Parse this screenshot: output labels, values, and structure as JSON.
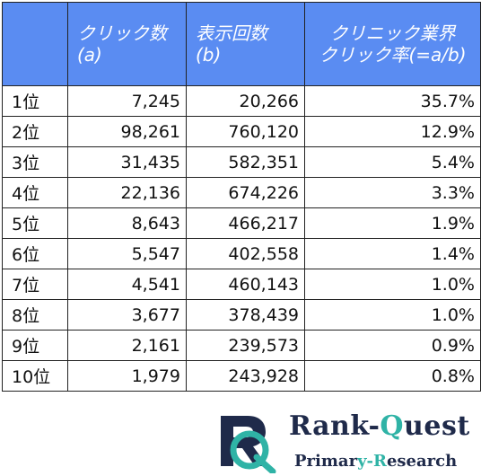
{
  "table": {
    "headers": {
      "clicks": [
        "クリック数",
        "(a)"
      ],
      "impressions": [
        "表示回数",
        "(b)"
      ],
      "ctr": [
        "クリニック業界",
        "クリック率(=a/b)"
      ]
    },
    "rows": [
      {
        "rank": "1位",
        "clicks": "7,245",
        "impressions": "20,266",
        "ctr": "35.7%"
      },
      {
        "rank": "2位",
        "clicks": "98,261",
        "impressions": "760,120",
        "ctr": "12.9%"
      },
      {
        "rank": "3位",
        "clicks": "31,435",
        "impressions": "582,351",
        "ctr": "5.4%"
      },
      {
        "rank": "4位",
        "clicks": "22,136",
        "impressions": "674,226",
        "ctr": "3.3%"
      },
      {
        "rank": "5位",
        "clicks": "8,643",
        "impressions": "466,217",
        "ctr": "1.9%"
      },
      {
        "rank": "6位",
        "clicks": "5,547",
        "impressions": "402,558",
        "ctr": "1.4%"
      },
      {
        "rank": "7位",
        "clicks": "4,541",
        "impressions": "460,143",
        "ctr": "1.0%"
      },
      {
        "rank": "8位",
        "clicks": "3,677",
        "impressions": "378,439",
        "ctr": "1.0%"
      },
      {
        "rank": "9位",
        "clicks": "2,161",
        "impressions": "239,573",
        "ctr": "0.9%"
      },
      {
        "rank": "10位",
        "clicks": "1,979",
        "impressions": "243,928",
        "ctr": "0.8%"
      }
    ]
  },
  "logo": {
    "title_part1": "Rank-",
    "title_part2": "Q",
    "title_part3": "uest",
    "sub_part1": "Primar",
    "sub_part2": "y-R",
    "sub_part3": "esearch",
    "icon": "rq-logo-mark",
    "colors": {
      "navy": "#1f2a4a",
      "teal": "#2fb3a6"
    }
  },
  "colors": {
    "header_bg": "#5a8cf2",
    "header_text": "#ffffff",
    "border": "#222222"
  }
}
